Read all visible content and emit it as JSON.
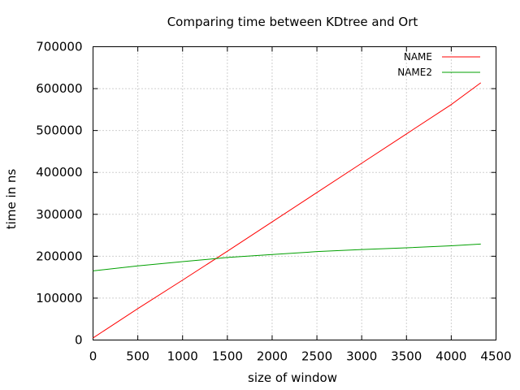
{
  "chart_data": {
    "type": "line",
    "title": "Comparing time between KDtree and Ort",
    "xlabel": "size of window",
    "ylabel": "time in ns",
    "xlim": [
      0,
      4500
    ],
    "ylim": [
      0,
      700000
    ],
    "xticks": [
      0,
      500,
      1000,
      1500,
      2000,
      2500,
      3000,
      3500,
      4000,
      4500
    ],
    "yticks": [
      0,
      100000,
      200000,
      300000,
      400000,
      500000,
      600000,
      700000
    ],
    "grid": true,
    "legend_position": "top-right",
    "series": [
      {
        "name": "NAME",
        "color": "#ff0000",
        "x": [
          0,
          500,
          1000,
          1500,
          2000,
          2500,
          3000,
          3500,
          4000,
          4330
        ],
        "values": [
          5000,
          75000,
          143000,
          212000,
          282000,
          352000,
          422000,
          492000,
          562000,
          614000
        ]
      },
      {
        "name": "NAME2",
        "color": "#00a000",
        "x": [
          0,
          500,
          1000,
          1500,
          2000,
          2500,
          3000,
          3500,
          4000,
          4330
        ],
        "values": [
          165000,
          177000,
          187000,
          197000,
          204000,
          211000,
          216000,
          220000,
          225000,
          229000
        ]
      }
    ]
  }
}
